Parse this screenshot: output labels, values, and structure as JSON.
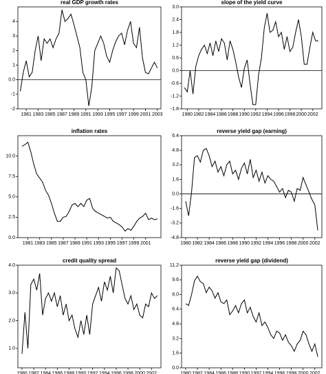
{
  "chart_data": [
    {
      "type": "line",
      "title": "real GDP growth rates",
      "zero_line": true,
      "color": "#000000",
      "x": [
        1980,
        1980.5,
        1981,
        1981.5,
        1982,
        1982.5,
        1983,
        1983.5,
        1984,
        1984.5,
        1985,
        1985.5,
        1986,
        1986.5,
        1987,
        1987.5,
        1988,
        1988.5,
        1989,
        1989.5,
        1990,
        1990.5,
        1991,
        1991.5,
        1992,
        1992.5,
        1993,
        1993.5,
        1994,
        1994.5,
        1995,
        1995.5,
        1996,
        1996.5,
        1997,
        1997.5,
        1998,
        1998.5,
        1999,
        1999.5,
        2000,
        2000.5,
        2001,
        2001.5,
        2002,
        2002.5,
        2003
      ],
      "values": [
        -0.8,
        0.5,
        1.3,
        0.2,
        0.5,
        2.0,
        3.0,
        1.3,
        2.8,
        2.5,
        2.8,
        2.2,
        2.8,
        3.2,
        4.8,
        4.0,
        4.2,
        4.5,
        3.8,
        3.0,
        2.2,
        0.5,
        0.0,
        -1.8,
        -0.5,
        2.0,
        2.5,
        3.0,
        2.5,
        1.6,
        1.2,
        2.0,
        2.6,
        3.0,
        3.2,
        2.4,
        3.4,
        4.0,
        2.5,
        2.2,
        3.6,
        1.5,
        0.5,
        0.4,
        0.8,
        1.2,
        0.8
      ],
      "xlim": [
        1979.6,
        2003.6
      ],
      "xticks": [
        1981,
        1983,
        1985,
        1987,
        1989,
        1991,
        1993,
        1995,
        1997,
        1999,
        2001,
        2003
      ],
      "ylim": [
        -2,
        5
      ],
      "yticks": [
        -2,
        -1,
        {
          "value": 0,
          "label": "0.0"
        },
        1,
        2,
        3,
        4
      ]
    },
    {
      "type": "line",
      "title": "slope of the yield curve",
      "zero_line": true,
      "color": "#000000",
      "x": [
        1979.5,
        1980,
        1980.5,
        1981,
        1981.5,
        1982,
        1982.5,
        1983,
        1983.5,
        1984,
        1984.5,
        1985,
        1985.5,
        1986,
        1986.5,
        1987,
        1987.5,
        1988,
        1988.5,
        1989,
        1989.5,
        1990,
        1990.5,
        1991,
        1991.5,
        1992,
        1992.5,
        1993,
        1993.5,
        1994,
        1994.5,
        1995,
        1995.5,
        1996,
        1996.5,
        1997,
        1997.5,
        1998,
        1998.5,
        1999,
        1999.5,
        2000,
        2000.5,
        2001,
        2001.5,
        2002,
        2002.5,
        2003
      ],
      "values": [
        -0.8,
        -1.0,
        0.0,
        -1.1,
        0.2,
        0.7,
        1.0,
        1.2,
        0.8,
        1.3,
        0.7,
        1.4,
        0.9,
        1.5,
        1.3,
        0.5,
        1.4,
        1.0,
        0.4,
        -0.3,
        -0.8,
        0.1,
        0.5,
        -0.6,
        -1.6,
        -1.6,
        -0.2,
        0.6,
        2.0,
        2.7,
        1.8,
        1.9,
        2.3,
        1.6,
        1.8,
        1.0,
        1.6,
        0.9,
        1.1,
        1.8,
        2.4,
        1.6,
        0.3,
        0.3,
        1.1,
        1.8,
        1.4,
        1.4
      ],
      "xlim": [
        1979,
        2003.6
      ],
      "xticks": [
        1980,
        1982,
        1984,
        1986,
        1988,
        1990,
        1992,
        1994,
        1996,
        1998,
        2000,
        2002
      ],
      "ylim": [
        -1.8,
        3.0
      ],
      "yticks": [
        -1.8,
        -1.2,
        -0.6,
        {
          "value": 0,
          "label": "0.0"
        },
        0.6,
        1.2,
        1.8,
        2.4,
        {
          "value": 3,
          "label": "3.0"
        }
      ]
    },
    {
      "type": "line",
      "title": "inflation rates",
      "zero_line": false,
      "color": "#000000",
      "x": [
        1980,
        1980.5,
        1981,
        1981.5,
        1982,
        1982.5,
        1983,
        1983.5,
        1984,
        1984.5,
        1985,
        1985.5,
        1986,
        1986.5,
        1987,
        1987.5,
        1988,
        1988.5,
        1989,
        1989.5,
        1990,
        1990.5,
        1991,
        1991.5,
        1992,
        1992.5,
        1993,
        1993.5,
        1994,
        1994.5,
        1995,
        1995.5,
        1996,
        1996.5,
        1997,
        1997.5,
        1998,
        1998.5,
        1999,
        1999.5,
        2000,
        2000.5,
        2001,
        2001.5,
        2002,
        2002.5,
        2003
      ],
      "values": [
        11.2,
        11.4,
        11.7,
        10.5,
        9.0,
        7.8,
        7.3,
        6.8,
        5.8,
        5.2,
        4.2,
        3.0,
        2.0,
        2.0,
        2.5,
        2.6,
        3.2,
        4.0,
        4.2,
        3.8,
        4.2,
        3.8,
        4.6,
        4.8,
        3.6,
        3.2,
        3.0,
        2.8,
        2.6,
        2.4,
        2.5,
        2.0,
        1.8,
        1.6,
        1.3,
        0.8,
        1.1,
        0.9,
        1.4,
        2.0,
        2.4,
        2.6,
        3.0,
        2.2,
        2.4,
        2.2,
        2.3
      ],
      "xlim": [
        1979.3,
        2003.6
      ],
      "xticks": [
        1981,
        1983,
        1985,
        1987,
        1989,
        1991,
        1993,
        1995,
        1997,
        1999,
        2001
      ],
      "ylim": [
        0,
        12.5
      ],
      "yticks": [
        {
          "value": 0,
          "label": "0.0"
        },
        2.5,
        {
          "value": 5,
          "label": "5.0"
        },
        7.5,
        {
          "value": 10,
          "label": "10.0"
        }
      ]
    },
    {
      "type": "line",
      "title": "reverse yield gap (earning)",
      "zero_line": true,
      "color": "#000000",
      "x": [
        1980,
        1980.5,
        1981,
        1981.5,
        1982,
        1982.5,
        1983,
        1983.5,
        1984,
        1984.5,
        1985,
        1985.5,
        1986,
        1986.5,
        1987,
        1987.5,
        1988,
        1988.5,
        1989,
        1989.5,
        1990,
        1990.5,
        1991,
        1991.5,
        1992,
        1992.5,
        1993,
        1993.5,
        1994,
        1994.5,
        1995,
        1995.5,
        1996,
        1996.5,
        1997,
        1997.5,
        1998,
        1998.5,
        1999,
        1999.5,
        2000,
        2000.5,
        2001,
        2001.5,
        2002,
        2002.5
      ],
      "values": [
        -0.8,
        -2.4,
        0.2,
        4.0,
        4.2,
        3.5,
        4.8,
        5.0,
        4.2,
        3.0,
        3.6,
        2.4,
        3.0,
        2.0,
        3.2,
        3.6,
        2.2,
        2.6,
        1.6,
        2.8,
        3.4,
        2.2,
        3.8,
        1.8,
        2.6,
        1.4,
        2.4,
        1.2,
        2.0,
        1.6,
        1.4,
        0.8,
        0.2,
        0.6,
        -0.4,
        0.4,
        0.2,
        -0.8,
        0.6,
        0.4,
        1.8,
        1.0,
        0.2,
        -0.6,
        -1.2,
        -4.0
      ],
      "xlim": [
        1979.3,
        2003.2
      ],
      "xticks": [
        1980,
        1982,
        1984,
        1986,
        1988,
        1990,
        1992,
        1994,
        1996,
        1998,
        2000,
        2002
      ],
      "ylim": [
        -4.8,
        6.4
      ],
      "yticks": [
        -4.8,
        -3.2,
        -1.6,
        {
          "value": 0,
          "label": "0.0"
        },
        1.6,
        3.2,
        4.8,
        6.4
      ]
    },
    {
      "type": "line",
      "title": "credit quality spread",
      "zero_line": false,
      "color": "#000000",
      "x": [
        1980,
        1980.5,
        1981,
        1981.5,
        1982,
        1982.5,
        1983,
        1983.5,
        1984,
        1984.5,
        1985,
        1985.5,
        1986,
        1986.5,
        1987,
        1987.5,
        1988,
        1988.5,
        1989,
        1989.5,
        1990,
        1990.5,
        1991,
        1991.5,
        1992,
        1992.5,
        1993,
        1993.5,
        1994,
        1994.5,
        1995,
        1995.5,
        1996,
        1996.5,
        1997,
        1997.5,
        1998,
        1998.5,
        1999,
        1999.5,
        2000,
        2000.5,
        2001,
        2001.5,
        2002,
        2002.5,
        2003
      ],
      "values": [
        0.8,
        2.3,
        1.0,
        3.3,
        3.5,
        3.1,
        3.7,
        2.2,
        2.8,
        3.0,
        2.7,
        3.0,
        2.5,
        2.9,
        2.2,
        2.6,
        2.0,
        2.2,
        1.7,
        1.4,
        2.0,
        1.5,
        2.2,
        1.5,
        2.6,
        2.9,
        3.2,
        2.7,
        3.4,
        3.1,
        3.6,
        3.0,
        3.9,
        3.8,
        3.3,
        2.8,
        2.6,
        2.9,
        2.4,
        2.6,
        2.2,
        2.1,
        2.6,
        2.5,
        3.0,
        2.8,
        2.9
      ],
      "xlim": [
        1979.3,
        2003.6
      ],
      "xticks": [
        1980,
        1982,
        1984,
        1986,
        1988,
        1990,
        1992,
        1994,
        1996,
        1998,
        2000,
        2002
      ],
      "ylim": [
        0.3,
        4.0
      ],
      "yticks": [
        {
          "value": 1,
          "label": "1.0"
        },
        {
          "value": 2,
          "label": "2.0"
        },
        {
          "value": 3,
          "label": "3.0"
        },
        {
          "value": 4,
          "label": "4.0"
        }
      ]
    },
    {
      "type": "line",
      "title": "reverse yield gap (dividend)",
      "zero_line": false,
      "color": "#000000",
      "x": [
        1980,
        1980.5,
        1981,
        1981.5,
        1982,
        1982.5,
        1983,
        1983.5,
        1984,
        1984.5,
        1985,
        1985.5,
        1986,
        1986.5,
        1987,
        1987.5,
        1988,
        1988.5,
        1989,
        1989.5,
        1990,
        1990.5,
        1991,
        1991.5,
        1992,
        1992.5,
        1993,
        1993.5,
        1994,
        1994.5,
        1995,
        1995.5,
        1996,
        1996.5,
        1997,
        1997.5,
        1998,
        1998.5,
        1999,
        1999.5,
        2000,
        2000.5,
        2001,
        2001.5,
        2002,
        2002.5
      ],
      "values": [
        7.0,
        6.8,
        8.0,
        9.5,
        10.0,
        9.4,
        9.2,
        8.2,
        8.8,
        8.4,
        7.6,
        8.2,
        7.2,
        7.0,
        7.4,
        5.8,
        6.2,
        6.8,
        6.0,
        7.0,
        7.4,
        6.0,
        6.6,
        5.6,
        5.0,
        6.0,
        4.6,
        5.0,
        4.4,
        3.6,
        3.2,
        4.0,
        3.8,
        3.0,
        3.6,
        2.8,
        2.4,
        1.8,
        2.6,
        3.0,
        4.0,
        3.6,
        2.6,
        1.8,
        2.6,
        1.2
      ],
      "xlim": [
        1979.3,
        2003.2
      ],
      "xticks": [
        1980,
        1982,
        1984,
        1986,
        1988,
        1990,
        1992,
        1994,
        1996,
        1998,
        2000,
        2002
      ],
      "ylim": [
        0,
        11.2
      ],
      "yticks": [
        {
          "value": 0,
          "label": "0.0"
        },
        1.6,
        3.2,
        4.8,
        6.4,
        {
          "value": 8,
          "label": "8.0"
        },
        9.6,
        11.2
      ]
    }
  ]
}
